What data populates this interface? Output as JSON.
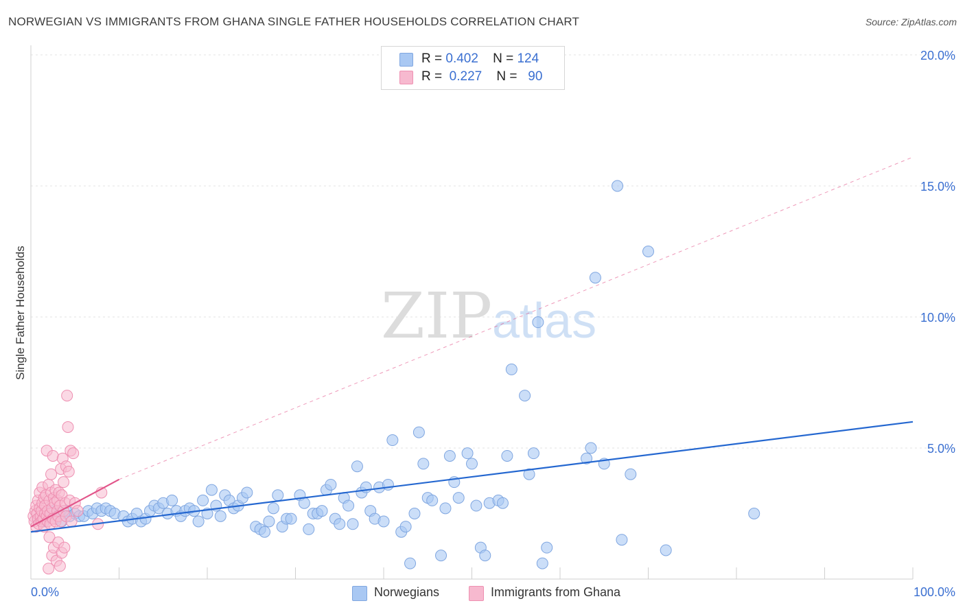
{
  "title": "NORWEGIAN VS IMMIGRANTS FROM GHANA SINGLE FATHER HOUSEHOLDS CORRELATION CHART",
  "source": "Source: ZipAtlas.com",
  "watermark": {
    "zip": "ZIP",
    "atlas": "atlas"
  },
  "colors": {
    "blue_fill": "#a9c8f3",
    "blue_stroke": "#7fa6e0",
    "blue_line": "#2467d0",
    "pink_fill": "#f7b9cf",
    "pink_stroke": "#ee8fb1",
    "pink_line": "#e2558a",
    "axis_text": "#3a6fd1",
    "grid": "#e3e3e3"
  },
  "legend_top": [
    {
      "r_label": "R =",
      "r_value": "0.402",
      "n_label": "N =",
      "n_value": "124",
      "color": "#a9c8f3"
    },
    {
      "r_label": "R =",
      "r_value": "0.227",
      "n_label": "N =",
      "n_value": "90",
      "color": "#f7b9cf"
    }
  ],
  "legend_bottom": [
    {
      "label": "Norwegians",
      "color": "#a9c8f3"
    },
    {
      "label": "Immigrants from Ghana",
      "color": "#f7b9cf"
    }
  ],
  "chart_data": {
    "type": "scatter",
    "title": "NORWEGIAN VS IMMIGRANTS FROM GHANA SINGLE FATHER HOUSEHOLDS CORRELATION CHART",
    "xlabel": "",
    "ylabel": "Single Father Households",
    "xlim": [
      0,
      100
    ],
    "ylim": [
      0,
      20
    ],
    "x_tick_labels": [
      "0.0%",
      "100.0%"
    ],
    "y_ticks": [
      5,
      10,
      15,
      20
    ],
    "y_tick_labels": [
      "5.0%",
      "10.0%",
      "15.0%",
      "20.0%"
    ],
    "grid": true,
    "legend_position": "top-center",
    "series": [
      {
        "name": "Norwegians",
        "R": 0.402,
        "N": 124,
        "trend": {
          "x": [
            0,
            100
          ],
          "y": [
            1.8,
            6.0
          ],
          "style": "solid"
        },
        "points": [
          [
            0.8,
            2.3
          ],
          [
            1.2,
            2.5
          ],
          [
            1.5,
            2.2
          ],
          [
            2.0,
            2.4
          ],
          [
            2.4,
            2.6
          ],
          [
            2.8,
            2.3
          ],
          [
            3.2,
            2.5
          ],
          [
            3.5,
            2.2
          ],
          [
            4.0,
            2.6
          ],
          [
            4.4,
            2.4
          ],
          [
            5.0,
            2.5
          ],
          [
            5.5,
            2.4
          ],
          [
            6.0,
            2.4
          ],
          [
            6.5,
            2.6
          ],
          [
            7.0,
            2.5
          ],
          [
            7.5,
            2.7
          ],
          [
            8.0,
            2.6
          ],
          [
            8.5,
            2.7
          ],
          [
            9.0,
            2.6
          ],
          [
            9.5,
            2.5
          ],
          [
            10.5,
            2.4
          ],
          [
            11.0,
            2.2
          ],
          [
            11.5,
            2.3
          ],
          [
            12.0,
            2.5
          ],
          [
            12.5,
            2.2
          ],
          [
            13.0,
            2.3
          ],
          [
            13.5,
            2.6
          ],
          [
            14.0,
            2.8
          ],
          [
            14.5,
            2.7
          ],
          [
            15.0,
            2.9
          ],
          [
            15.5,
            2.5
          ],
          [
            16.0,
            3.0
          ],
          [
            16.5,
            2.6
          ],
          [
            17.0,
            2.4
          ],
          [
            17.5,
            2.6
          ],
          [
            18.0,
            2.7
          ],
          [
            18.5,
            2.6
          ],
          [
            19.0,
            2.2
          ],
          [
            19.5,
            3.0
          ],
          [
            20.0,
            2.5
          ],
          [
            20.5,
            3.4
          ],
          [
            21.0,
            2.8
          ],
          [
            21.5,
            2.4
          ],
          [
            22.0,
            3.2
          ],
          [
            22.5,
            3.0
          ],
          [
            23.0,
            2.7
          ],
          [
            23.5,
            2.8
          ],
          [
            24.0,
            3.1
          ],
          [
            24.5,
            3.3
          ],
          [
            25.5,
            2.0
          ],
          [
            26.0,
            1.9
          ],
          [
            26.5,
            1.8
          ],
          [
            27.0,
            2.2
          ],
          [
            27.5,
            2.7
          ],
          [
            28.0,
            3.2
          ],
          [
            28.5,
            2.0
          ],
          [
            29.0,
            2.3
          ],
          [
            29.5,
            2.3
          ],
          [
            30.5,
            3.2
          ],
          [
            31.0,
            2.9
          ],
          [
            31.5,
            1.9
          ],
          [
            32.0,
            2.5
          ],
          [
            32.5,
            2.5
          ],
          [
            33.0,
            2.6
          ],
          [
            33.5,
            3.4
          ],
          [
            34.0,
            3.6
          ],
          [
            34.5,
            2.3
          ],
          [
            35.0,
            2.1
          ],
          [
            35.5,
            3.1
          ],
          [
            36.0,
            2.8
          ],
          [
            36.5,
            2.1
          ],
          [
            37.0,
            4.3
          ],
          [
            37.5,
            3.3
          ],
          [
            38.0,
            3.5
          ],
          [
            38.5,
            2.6
          ],
          [
            39.0,
            2.3
          ],
          [
            39.5,
            3.5
          ],
          [
            40.0,
            2.2
          ],
          [
            40.5,
            3.6
          ],
          [
            41.0,
            5.3
          ],
          [
            42.0,
            1.8
          ],
          [
            42.5,
            2.0
          ],
          [
            43.0,
            0.6
          ],
          [
            43.5,
            2.5
          ],
          [
            44.0,
            5.6
          ],
          [
            44.5,
            4.4
          ],
          [
            45.0,
            3.1
          ],
          [
            45.5,
            3.0
          ],
          [
            46.5,
            0.9
          ],
          [
            47.0,
            2.7
          ],
          [
            47.5,
            4.7
          ],
          [
            48.0,
            3.7
          ],
          [
            48.5,
            3.1
          ],
          [
            49.5,
            4.8
          ],
          [
            50.0,
            4.4
          ],
          [
            50.5,
            2.8
          ],
          [
            51.0,
            1.2
          ],
          [
            51.5,
            0.9
          ],
          [
            52.0,
            2.9
          ],
          [
            53.0,
            3.0
          ],
          [
            53.5,
            2.9
          ],
          [
            54.0,
            4.7
          ],
          [
            54.5,
            8.0
          ],
          [
            56.0,
            7.0
          ],
          [
            56.5,
            4.0
          ],
          [
            57.0,
            4.8
          ],
          [
            57.5,
            9.8
          ],
          [
            58.0,
            0.6
          ],
          [
            58.5,
            1.2
          ],
          [
            63.0,
            4.6
          ],
          [
            63.5,
            5.0
          ],
          [
            64.0,
            11.5
          ],
          [
            65.0,
            4.4
          ],
          [
            66.5,
            15.0
          ],
          [
            67.0,
            1.5
          ],
          [
            68.0,
            4.0
          ],
          [
            70.0,
            12.5
          ],
          [
            72.0,
            1.1
          ],
          [
            82.0,
            2.5
          ]
        ]
      },
      {
        "name": "Immigrants from Ghana",
        "R": 0.227,
        "N": 90,
        "trend": {
          "x": [
            0,
            10
          ],
          "y": [
            2.0,
            3.8
          ],
          "style": "solid",
          "extended_dashed_to": [
            100,
            16.1
          ]
        },
        "points": [
          [
            0.3,
            2.4
          ],
          [
            0.4,
            2.2
          ],
          [
            0.5,
            2.6
          ],
          [
            0.6,
            2.0
          ],
          [
            0.6,
            2.8
          ],
          [
            0.7,
            2.5
          ],
          [
            0.8,
            2.3
          ],
          [
            0.8,
            3.0
          ],
          [
            0.9,
            2.1
          ],
          [
            1.0,
            2.7
          ],
          [
            1.0,
            3.3
          ],
          [
            1.1,
            2.4
          ],
          [
            1.2,
            2.6
          ],
          [
            1.2,
            2.2
          ],
          [
            1.3,
            3.5
          ],
          [
            1.3,
            2.9
          ],
          [
            1.4,
            2.3
          ],
          [
            1.5,
            3.1
          ],
          [
            1.5,
            2.0
          ],
          [
            1.6,
            2.5
          ],
          [
            1.6,
            2.8
          ],
          [
            1.7,
            3.2
          ],
          [
            1.8,
            2.4
          ],
          [
            1.8,
            4.9
          ],
          [
            1.9,
            2.6
          ],
          [
            1.9,
            2.2
          ],
          [
            2.0,
            3.6
          ],
          [
            2.0,
            0.4
          ],
          [
            2.1,
            3.0
          ],
          [
            2.1,
            1.6
          ],
          [
            2.2,
            2.5
          ],
          [
            2.2,
            2.1
          ],
          [
            2.3,
            4.0
          ],
          [
            2.3,
            3.3
          ],
          [
            2.4,
            2.7
          ],
          [
            2.4,
            0.9
          ],
          [
            2.5,
            4.7
          ],
          [
            2.5,
            2.3
          ],
          [
            2.6,
            3.1
          ],
          [
            2.6,
            1.2
          ],
          [
            2.7,
            2.9
          ],
          [
            2.8,
            3.4
          ],
          [
            2.8,
            2.2
          ],
          [
            2.9,
            0.7
          ],
          [
            3.0,
            2.6
          ],
          [
            3.0,
            3.0
          ],
          [
            3.1,
            1.4
          ],
          [
            3.1,
            2.4
          ],
          [
            3.2,
            3.3
          ],
          [
            3.3,
            0.5
          ],
          [
            3.3,
            2.8
          ],
          [
            3.4,
            4.2
          ],
          [
            3.4,
            2.2
          ],
          [
            3.5,
            1.0
          ],
          [
            3.5,
            3.2
          ],
          [
            3.6,
            4.6
          ],
          [
            3.7,
            2.6
          ],
          [
            3.7,
            3.7
          ],
          [
            3.8,
            1.2
          ],
          [
            3.9,
            2.9
          ],
          [
            4.0,
            4.3
          ],
          [
            4.0,
            2.4
          ],
          [
            4.1,
            7.0
          ],
          [
            4.2,
            5.8
          ],
          [
            4.3,
            4.1
          ],
          [
            4.4,
            3.0
          ],
          [
            4.5,
            4.9
          ],
          [
            4.6,
            2.2
          ],
          [
            4.8,
            4.8
          ],
          [
            5.0,
            2.9
          ],
          [
            5.3,
            2.6
          ],
          [
            7.6,
            2.1
          ],
          [
            8.0,
            3.3
          ]
        ]
      }
    ]
  }
}
